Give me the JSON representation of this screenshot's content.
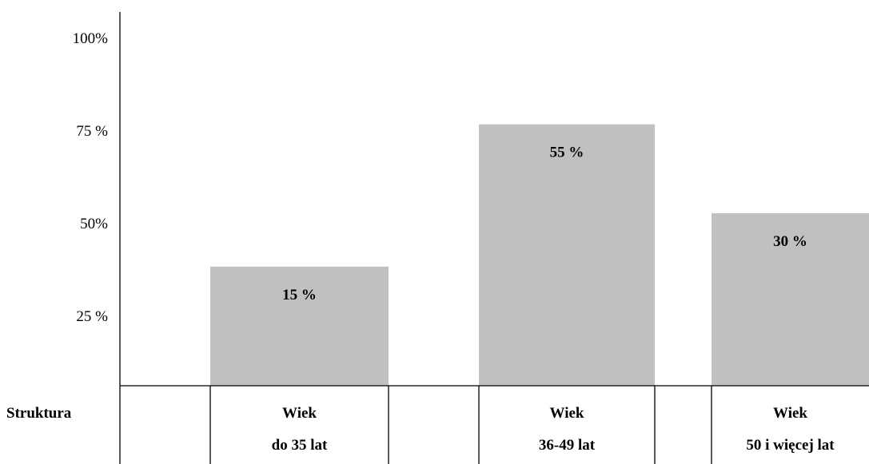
{
  "chart_data": {
    "type": "bar",
    "categories": [
      {
        "line1": "Wiek",
        "line2": "do 35 lat"
      },
      {
        "line1": "Wiek",
        "line2": "36-49 lat"
      },
      {
        "line1": "Wiek",
        "line2": "50 i więcej lat"
      }
    ],
    "values": [
      15,
      55,
      30
    ],
    "data_labels": [
      "15 %",
      "55 %",
      "30 %"
    ],
    "yticks": [
      {
        "value": 25,
        "label": "25 %"
      },
      {
        "value": 50,
        "label": "50%"
      },
      {
        "value": 75,
        "label": "75 %"
      },
      {
        "value": 100,
        "label": "100%"
      }
    ],
    "row_header": "Struktura",
    "ylim": [
      0,
      100
    ],
    "grid": false,
    "bar_color": "#c0c0c0"
  }
}
